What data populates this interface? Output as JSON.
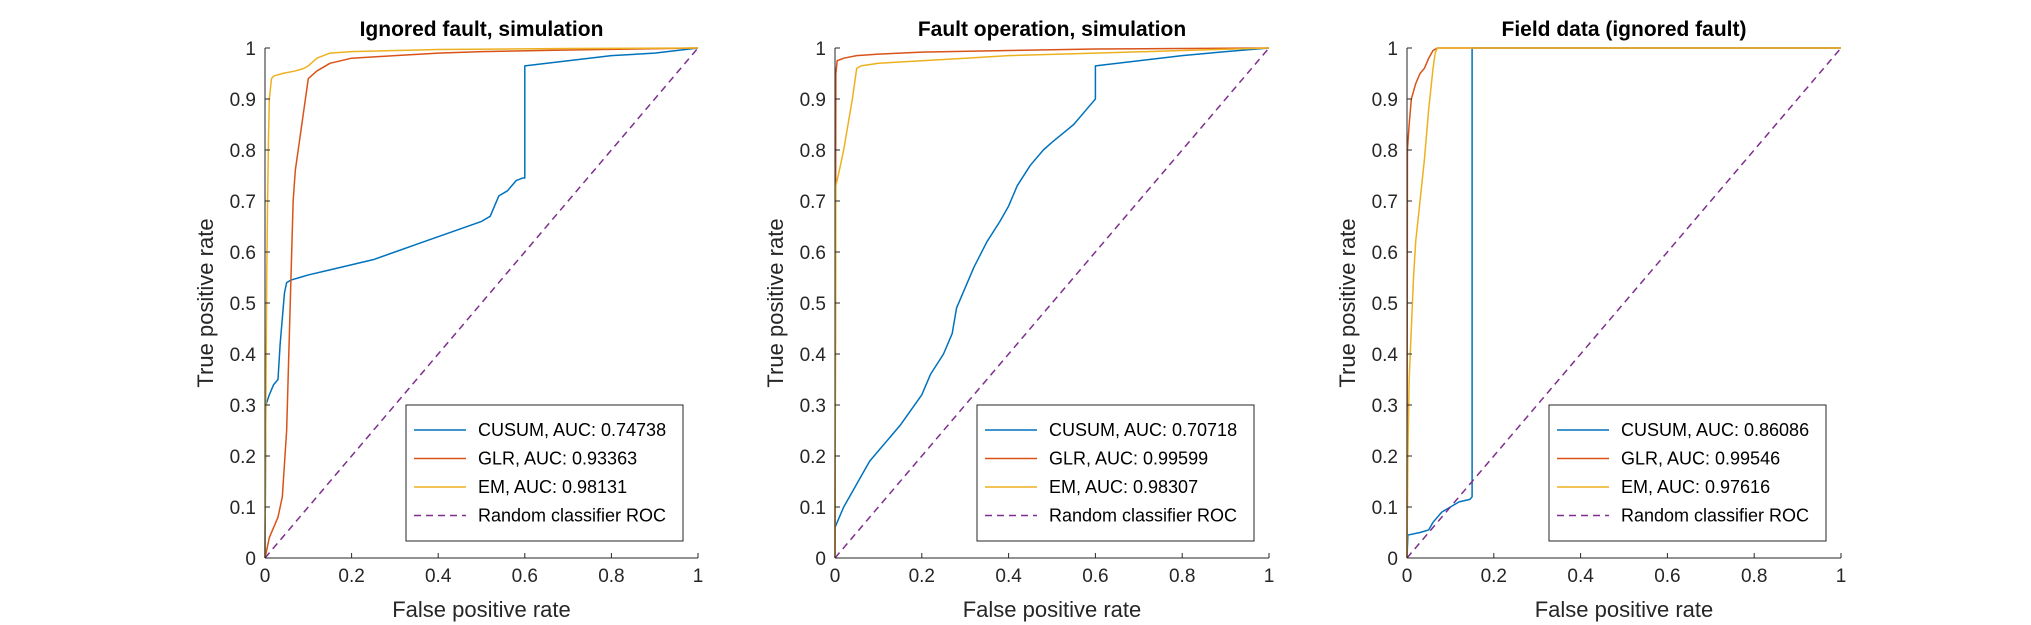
{
  "figure": {
    "background": "#ffffff"
  },
  "chart_data": [
    {
      "type": "line",
      "title": "Ignored fault, simulation",
      "xlabel": "False positive rate",
      "ylabel": "True positive rate",
      "xlim": [
        0,
        1
      ],
      "ylim": [
        0,
        1
      ],
      "xticks": [
        "0",
        "0.2",
        "0.4",
        "0.6",
        "0.8",
        "1"
      ],
      "yticks": [
        "0",
        "0.1",
        "0.2",
        "0.3",
        "0.4",
        "0.5",
        "0.6",
        "0.7",
        "0.8",
        "0.9",
        "1"
      ],
      "grid": false,
      "legend_position": "bottom-right",
      "series": [
        {
          "name": "CUSUM, AUC: 0.74738",
          "color": "#0072BD",
          "dash": "solid",
          "points": [
            [
              0,
              0
            ],
            [
              0.002,
              0.3
            ],
            [
              0.01,
              0.32
            ],
            [
              0.02,
              0.34
            ],
            [
              0.03,
              0.35
            ],
            [
              0.035,
              0.42
            ],
            [
              0.04,
              0.47
            ],
            [
              0.045,
              0.52
            ],
            [
              0.05,
              0.54
            ],
            [
              0.06,
              0.545
            ],
            [
              0.08,
              0.55
            ],
            [
              0.1,
              0.555
            ],
            [
              0.15,
              0.565
            ],
            [
              0.2,
              0.575
            ],
            [
              0.25,
              0.585
            ],
            [
              0.3,
              0.6
            ],
            [
              0.35,
              0.615
            ],
            [
              0.4,
              0.63
            ],
            [
              0.45,
              0.645
            ],
            [
              0.5,
              0.66
            ],
            [
              0.52,
              0.67
            ],
            [
              0.54,
              0.71
            ],
            [
              0.56,
              0.72
            ],
            [
              0.58,
              0.74
            ],
            [
              0.595,
              0.745
            ],
            [
              0.6,
              0.745
            ],
            [
              0.6,
              0.965
            ],
            [
              0.7,
              0.975
            ],
            [
              0.8,
              0.985
            ],
            [
              0.9,
              0.99
            ],
            [
              1,
              1
            ]
          ]
        },
        {
          "name": "GLR, AUC: 0.93363",
          "color": "#D95319",
          "dash": "solid",
          "points": [
            [
              0,
              0
            ],
            [
              0.005,
              0.02
            ],
            [
              0.01,
              0.04
            ],
            [
              0.02,
              0.06
            ],
            [
              0.03,
              0.08
            ],
            [
              0.04,
              0.12
            ],
            [
              0.05,
              0.25
            ],
            [
              0.055,
              0.4
            ],
            [
              0.06,
              0.55
            ],
            [
              0.065,
              0.7
            ],
            [
              0.07,
              0.76
            ],
            [
              0.08,
              0.82
            ],
            [
              0.09,
              0.88
            ],
            [
              0.1,
              0.94
            ],
            [
              0.12,
              0.955
            ],
            [
              0.15,
              0.97
            ],
            [
              0.2,
              0.98
            ],
            [
              0.3,
              0.985
            ],
            [
              0.4,
              0.99
            ],
            [
              0.5,
              0.993
            ],
            [
              0.7,
              0.996
            ],
            [
              1,
              1
            ]
          ]
        },
        {
          "name": "EM, AUC: 0.98131",
          "color": "#EDB120",
          "dash": "solid",
          "points": [
            [
              0,
              0
            ],
            [
              0.002,
              0.3
            ],
            [
              0.004,
              0.55
            ],
            [
              0.006,
              0.7
            ],
            [
              0.008,
              0.82
            ],
            [
              0.01,
              0.9
            ],
            [
              0.015,
              0.94
            ],
            [
              0.02,
              0.945
            ],
            [
              0.04,
              0.95
            ],
            [
              0.07,
              0.955
            ],
            [
              0.09,
              0.96
            ],
            [
              0.1,
              0.965
            ],
            [
              0.12,
              0.98
            ],
            [
              0.15,
              0.99
            ],
            [
              0.2,
              0.993
            ],
            [
              0.4,
              0.997
            ],
            [
              0.7,
              0.999
            ],
            [
              1,
              1
            ]
          ]
        },
        {
          "name": "Random classifier ROC",
          "color": "#7E2F8E",
          "dash": "dashed",
          "points": [
            [
              0,
              0
            ],
            [
              1,
              1
            ]
          ]
        }
      ]
    },
    {
      "type": "line",
      "title": "Fault operation, simulation",
      "xlabel": "False positive rate",
      "ylabel": "True positive rate",
      "xlim": [
        0,
        1
      ],
      "ylim": [
        0,
        1
      ],
      "xticks": [
        "0",
        "0.2",
        "0.4",
        "0.6",
        "0.8",
        "1"
      ],
      "yticks": [
        "0",
        "0.1",
        "0.2",
        "0.3",
        "0.4",
        "0.5",
        "0.6",
        "0.7",
        "0.8",
        "0.9",
        "1"
      ],
      "grid": false,
      "legend_position": "bottom-right",
      "series": [
        {
          "name": "CUSUM, AUC: 0.70718",
          "color": "#0072BD",
          "dash": "solid",
          "points": [
            [
              0,
              0.06
            ],
            [
              0.01,
              0.08
            ],
            [
              0.02,
              0.1
            ],
            [
              0.04,
              0.13
            ],
            [
              0.06,
              0.16
            ],
            [
              0.08,
              0.19
            ],
            [
              0.1,
              0.21
            ],
            [
              0.15,
              0.26
            ],
            [
              0.2,
              0.32
            ],
            [
              0.22,
              0.36
            ],
            [
              0.25,
              0.4
            ],
            [
              0.27,
              0.44
            ],
            [
              0.28,
              0.49
            ],
            [
              0.3,
              0.53
            ],
            [
              0.32,
              0.57
            ],
            [
              0.35,
              0.62
            ],
            [
              0.38,
              0.66
            ],
            [
              0.4,
              0.69
            ],
            [
              0.42,
              0.73
            ],
            [
              0.45,
              0.77
            ],
            [
              0.48,
              0.8
            ],
            [
              0.5,
              0.815
            ],
            [
              0.55,
              0.85
            ],
            [
              0.58,
              0.88
            ],
            [
              0.6,
              0.9
            ],
            [
              0.6,
              0.965
            ],
            [
              0.7,
              0.975
            ],
            [
              0.8,
              0.985
            ],
            [
              0.9,
              0.993
            ],
            [
              1,
              1
            ]
          ]
        },
        {
          "name": "GLR, AUC: 0.99599",
          "color": "#D95319",
          "dash": "solid",
          "points": [
            [
              0,
              0
            ],
            [
              0.002,
              0.95
            ],
            [
              0.005,
              0.975
            ],
            [
              0.02,
              0.98
            ],
            [
              0.05,
              0.985
            ],
            [
              0.1,
              0.988
            ],
            [
              0.2,
              0.992
            ],
            [
              0.4,
              0.995
            ],
            [
              0.6,
              0.998
            ],
            [
              0.8,
              0.999
            ],
            [
              1,
              1
            ]
          ]
        },
        {
          "name": "EM, AUC: 0.98307",
          "color": "#EDB120",
          "dash": "solid",
          "points": [
            [
              0,
              0
            ],
            [
              0.002,
              0.73
            ],
            [
              0.01,
              0.76
            ],
            [
              0.02,
              0.8
            ],
            [
              0.03,
              0.85
            ],
            [
              0.04,
              0.9
            ],
            [
              0.05,
              0.96
            ],
            [
              0.06,
              0.965
            ],
            [
              0.1,
              0.97
            ],
            [
              0.2,
              0.975
            ],
            [
              0.3,
              0.98
            ],
            [
              0.4,
              0.985
            ],
            [
              0.6,
              0.99
            ],
            [
              0.8,
              0.995
            ],
            [
              1,
              1
            ]
          ]
        },
        {
          "name": "Random classifier ROC",
          "color": "#7E2F8E",
          "dash": "dashed",
          "points": [
            [
              0,
              0
            ],
            [
              1,
              1
            ]
          ]
        }
      ]
    },
    {
      "type": "line",
      "title": "Field data (ignored fault)",
      "xlabel": "False positive rate",
      "ylabel": "True positive rate",
      "xlim": [
        0,
        1
      ],
      "ylim": [
        0,
        1
      ],
      "xticks": [
        "0",
        "0.2",
        "0.4",
        "0.6",
        "0.8",
        "1"
      ],
      "yticks": [
        "0",
        "0.1",
        "0.2",
        "0.3",
        "0.4",
        "0.5",
        "0.6",
        "0.7",
        "0.8",
        "0.9",
        "1"
      ],
      "grid": false,
      "legend_position": "bottom-right",
      "series": [
        {
          "name": "CUSUM, AUC: 0.86086",
          "color": "#0072BD",
          "dash": "solid",
          "points": [
            [
              0,
              0
            ],
            [
              0.002,
              0.045
            ],
            [
              0.03,
              0.05
            ],
            [
              0.05,
              0.055
            ],
            [
              0.06,
              0.07
            ],
            [
              0.08,
              0.09
            ],
            [
              0.1,
              0.1
            ],
            [
              0.12,
              0.11
            ],
            [
              0.145,
              0.115
            ],
            [
              0.15,
              0.12
            ],
            [
              0.15,
              1
            ],
            [
              1,
              1
            ]
          ]
        },
        {
          "name": "GLR, AUC: 0.99546",
          "color": "#D95319",
          "dash": "solid",
          "points": [
            [
              0,
              0
            ],
            [
              0.001,
              0.8
            ],
            [
              0.005,
              0.85
            ],
            [
              0.01,
              0.9
            ],
            [
              0.02,
              0.93
            ],
            [
              0.03,
              0.95
            ],
            [
              0.04,
              0.96
            ],
            [
              0.05,
              0.98
            ],
            [
              0.06,
              0.995
            ],
            [
              0.07,
              1
            ],
            [
              1,
              1
            ]
          ]
        },
        {
          "name": "EM, AUC: 0.97616",
          "color": "#EDB120",
          "dash": "solid",
          "points": [
            [
              0,
              0
            ],
            [
              0.002,
              0.2
            ],
            [
              0.005,
              0.35
            ],
            [
              0.01,
              0.45
            ],
            [
              0.015,
              0.55
            ],
            [
              0.02,
              0.62
            ],
            [
              0.03,
              0.7
            ],
            [
              0.04,
              0.78
            ],
            [
              0.05,
              0.88
            ],
            [
              0.06,
              0.96
            ],
            [
              0.065,
              0.99
            ],
            [
              0.07,
              1
            ],
            [
              1,
              1
            ]
          ]
        },
        {
          "name": "Random classifier ROC",
          "color": "#7E2F8E",
          "dash": "dashed",
          "points": [
            [
              0,
              0
            ],
            [
              1,
              1
            ]
          ]
        }
      ]
    }
  ]
}
